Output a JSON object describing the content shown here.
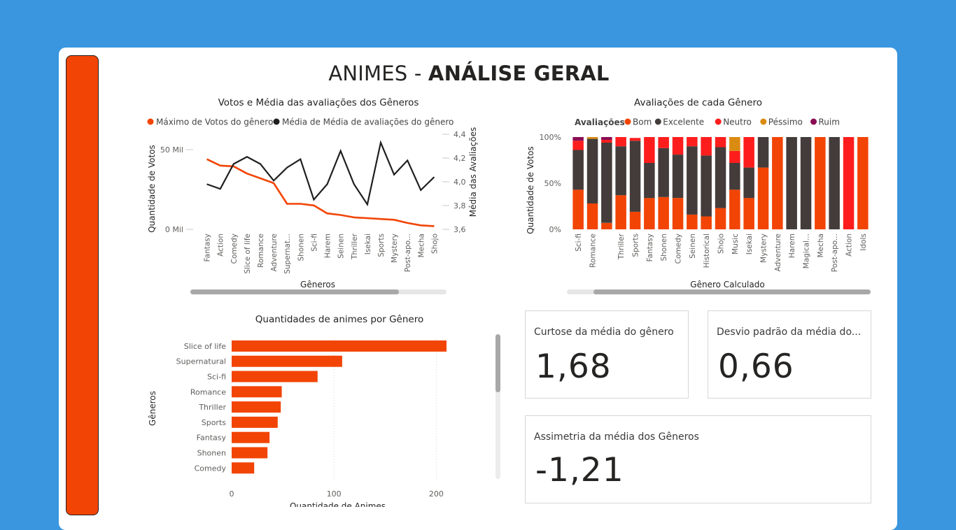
{
  "page": {
    "title_light": "ANIMES - ",
    "title_bold": "ANÁLISE GERAL"
  },
  "colors": {
    "background": "#3a96de",
    "accent": "#f24405",
    "dark": "#1f1f1f",
    "bom": "#f24405",
    "excelente": "#433c3a",
    "neutro": "#fe1d1d",
    "pessimo": "#d98b12",
    "ruim": "#8a0d54"
  },
  "kpis": [
    {
      "label": "Curtose da média do gênero",
      "value": "1,68"
    },
    {
      "label": "Desvio padrão da média do...",
      "value": "0,66"
    },
    {
      "label": "Assimetria da média dos Gêneros",
      "value": "-1,21"
    }
  ],
  "chart_data": [
    {
      "type": "line",
      "title": "Votos e Média das avaliações dos Gêneros",
      "xlabel": "Gêneros",
      "ylabel": "Quantidade de Votos",
      "y2label": "Média das Avaliações",
      "ylim": [
        0,
        50000
      ],
      "y2lim": [
        3.6,
        4.4
      ],
      "ytick_labels": [
        "0 Mil",
        "50 Mil"
      ],
      "y2tick_labels": [
        "3,6",
        "3,8",
        "4,0",
        "4,2",
        "4,4"
      ],
      "categories": [
        "Fantasy",
        "Action",
        "Comedy",
        "Slice of life",
        "Romance",
        "Adventure",
        "Supernat...",
        "Shonen",
        "Sci-fi",
        "Harem",
        "Seinen",
        "Thriller",
        "Isekai",
        "Sports",
        "Mystery",
        "Post-apo...",
        "Mecha",
        "Shojo"
      ],
      "series": [
        {
          "name": "Máximo de Votos do gênero",
          "axis": "left",
          "color": "#f24405",
          "values": [
            44000,
            40000,
            39500,
            35000,
            32000,
            29000,
            16000,
            16000,
            15000,
            10000,
            9000,
            7500,
            7000,
            6500,
            6000,
            4000,
            2500,
            2000
          ]
        },
        {
          "name": "Média de Média de avaliações do gênero",
          "axis": "right",
          "color": "#1f1f1f",
          "values": [
            3.98,
            3.94,
            4.15,
            4.21,
            4.15,
            4.01,
            4.12,
            4.19,
            3.85,
            3.98,
            4.26,
            3.98,
            3.81,
            4.33,
            4.06,
            4.18,
            3.93,
            4.04
          ]
        }
      ]
    },
    {
      "type": "bar",
      "stacked": "percent",
      "title": "Avaliações de cada Gênero",
      "xlabel": "Gênero Calculado",
      "ylabel": "Quantidade de Votos",
      "legend_title": "Avaliações",
      "ytick_labels": [
        "0%",
        "50%",
        "100%"
      ],
      "categories": [
        "Sci-fi",
        "Romance",
        "",
        "Thriller",
        "Sports",
        "Fantasy",
        "Shonen",
        "Comedy",
        "Seinen",
        "Historical",
        "Shojo",
        "Music",
        "Isekai",
        "Mystery",
        "Adventure",
        "Harem",
        "Magical...",
        "Mecha",
        "Post-apo...",
        "Action",
        "Idols"
      ],
      "series": [
        {
          "name": "Bom",
          "values": [
            43,
            28,
            7,
            37,
            19,
            34,
            35,
            34,
            16,
            14,
            23,
            43,
            34,
            67,
            100,
            0,
            0,
            100,
            0,
            0,
            100
          ]
        },
        {
          "name": "Excelente",
          "values": [
            43,
            70,
            87,
            53,
            77,
            38,
            53,
            47,
            74,
            66,
            66,
            29,
            33,
            33,
            0,
            100,
            100,
            0,
            100,
            0,
            0
          ]
        },
        {
          "name": "Neutro",
          "values": [
            10,
            0,
            3,
            10,
            3,
            28,
            12,
            19,
            10,
            20,
            11,
            13,
            33,
            0,
            0,
            0,
            0,
            0,
            0,
            100,
            0
          ]
        },
        {
          "name": "Péssimo",
          "values": [
            0,
            2,
            0,
            0,
            0,
            0,
            0,
            0,
            0,
            0,
            0,
            15,
            0,
            0,
            0,
            0,
            0,
            0,
            0,
            0,
            0
          ]
        },
        {
          "name": "Ruim",
          "values": [
            4,
            0,
            3,
            0,
            0,
            0,
            0,
            0,
            0,
            0,
            0,
            0,
            0,
            0,
            0,
            0,
            0,
            0,
            0,
            0,
            0
          ]
        }
      ]
    },
    {
      "type": "bar",
      "orientation": "horizontal",
      "title": "Quantidades de animes por Gênero",
      "xlabel": "Quantidade de Animes",
      "ylabel": "Gêneros",
      "xlim": [
        0,
        210
      ],
      "xticks": [
        0,
        100,
        200
      ],
      "categories": [
        "Slice of life",
        "Supernatural",
        "Sci-fi",
        "Romance",
        "Thriller",
        "Sports",
        "Fantasy",
        "Shonen",
        "Comedy"
      ],
      "values": [
        210,
        108,
        84,
        49,
        48,
        45,
        37,
        35,
        22
      ],
      "color": "#f24405"
    }
  ]
}
